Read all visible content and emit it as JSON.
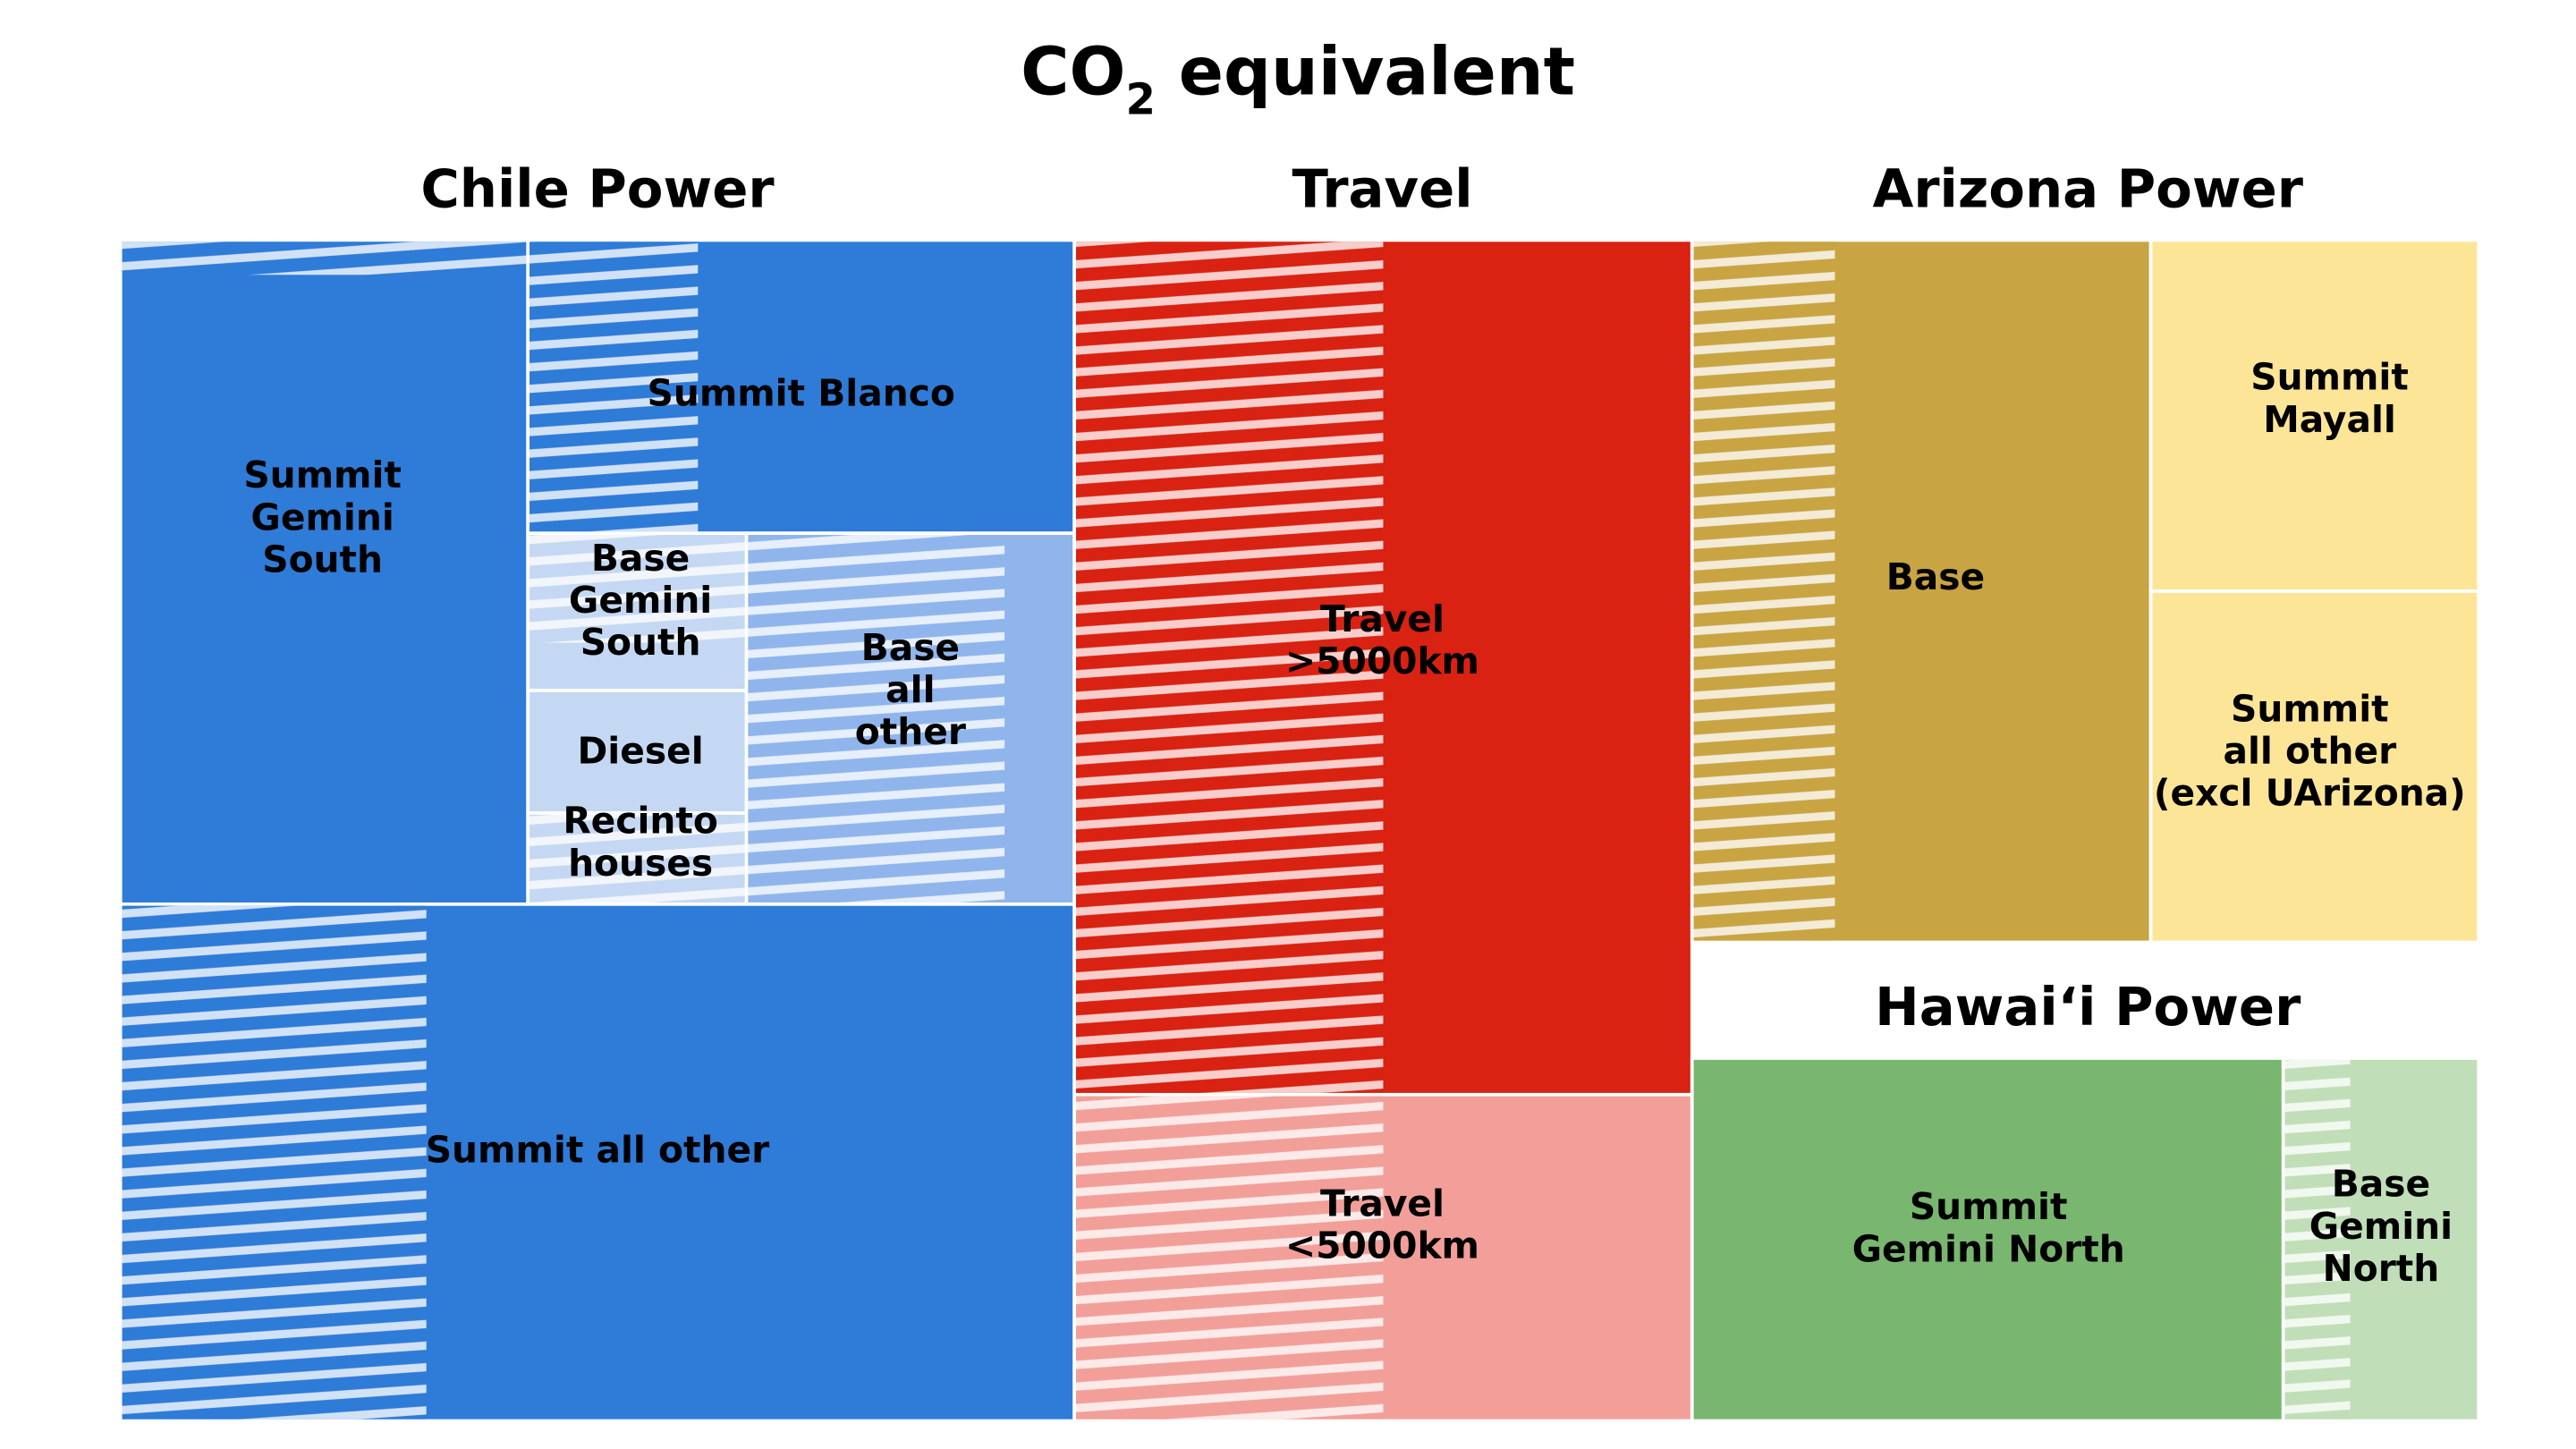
{
  "chart_data": {
    "type": "treemap",
    "title": "CO2 equivalent",
    "title_main": "CO",
    "title_sub": "2",
    "title_rest": " equivalent",
    "hatch_meaning": "",
    "groups": [
      {
        "name": "Chile Power",
        "color": "#2f7bd8",
        "cells": [
          {
            "label": "Summit\nGemini\nSouth",
            "share": 0.121,
            "color": "#2f7bd8",
            "hatched_share": 0.05
          },
          {
            "label": "Summit Blanco",
            "share": 0.066,
            "color": "#2f7bd8",
            "hatched_share": 0.31
          },
          {
            "label": "Base\nGemini\nSouth",
            "share": 0.011,
            "color": "#c5d8f3",
            "hatched_share": 0.7
          },
          {
            "label": "Diesel",
            "share": 0.009,
            "color": "#c5d8f3",
            "hatched_share": 0
          },
          {
            "label": "Recinto\nhouses",
            "share": 0.007,
            "color": "#c5d8f3",
            "hatched_share": 1.0
          },
          {
            "label": "Base\nall\nother",
            "share": 0.034,
            "color": "#8fb5ec",
            "hatched_share": 0.79
          },
          {
            "label": "Summit all other",
            "share": 0.209,
            "color": "#2f7bd8",
            "hatched_share": 0.32
          }
        ]
      },
      {
        "name": "Travel",
        "color": "#d92212",
        "cells": [
          {
            "label": "Travel\n>5000km",
            "share": 0.224,
            "color": "#d92212",
            "hatched_share": 0.5
          },
          {
            "label": "Travel\n<5000km",
            "share": 0.072,
            "color": "#f29f9a",
            "hatched_share": 0.5
          }
        ]
      },
      {
        "name": "Arizona Power",
        "color": "#c9a443",
        "cells": [
          {
            "label": "Base",
            "share": 0.138,
            "color": "#c9a443",
            "hatched_share": 0.31
          },
          {
            "label": "Summit\nMayall",
            "share": 0.049,
            "color": "#fde598",
            "hatched_share": 0
          },
          {
            "label": "Summit\nall other\n(excl UArizona)",
            "share": 0.049,
            "color": "#fde598",
            "hatched_share": 0
          }
        ]
      },
      {
        "name": "Hawaiʻi Power",
        "color": "#79b66f",
        "cells": [
          {
            "label": "Summit\nGemini North",
            "share": 0.087,
            "color": "#79b66f",
            "hatched_share": 0
          },
          {
            "label": "Base\nGemini\nNorth",
            "share": 0.026,
            "color": "#c0deb8",
            "hatched_share": 0.34
          }
        ]
      }
    ]
  }
}
